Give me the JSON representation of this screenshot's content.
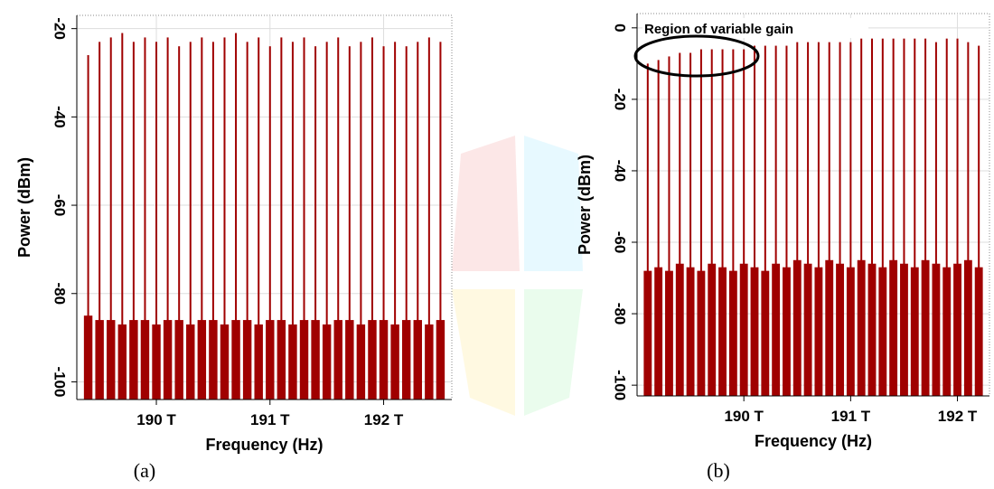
{
  "chart_data": [
    {
      "type": "spectrum",
      "caption": "(a)",
      "x_label": "Frequency (Hz)",
      "y_label": "Power (dBm)",
      "x": [
        189400000000000,
        189500000000000,
        189600000000000,
        189700000000000,
        189800000000000,
        189900000000000,
        190000000000000,
        190100000000000,
        190200000000000,
        190300000000000,
        190400000000000,
        190500000000000,
        190600000000000,
        190700000000000,
        190800000000000,
        190900000000000,
        191000000000000,
        191100000000000,
        191200000000000,
        191300000000000,
        191400000000000,
        191500000000000,
        191600000000000,
        191700000000000,
        191800000000000,
        191900000000000,
        192000000000000,
        192100000000000,
        192200000000000,
        192300000000000,
        192400000000000,
        192500000000000
      ],
      "series": [
        {
          "color": "#a00000",
          "values": [
            -26,
            -23,
            -22,
            -21,
            -23,
            -22,
            -23,
            -22,
            -24,
            -23,
            -22,
            -23,
            -22,
            -21,
            -23,
            -22,
            -24,
            -22,
            -23,
            -22,
            -24,
            -23,
            -22,
            -24,
            -23,
            -22,
            -24,
            -23,
            -24,
            -23,
            -22,
            -23
          ]
        },
        {
          "color": "#a00000",
          "values": [
            -85,
            -86,
            -86,
            -87,
            -86,
            -86,
            -87,
            -86,
            -86,
            -87,
            -86,
            -86,
            -87,
            -86,
            -86,
            -87,
            -86,
            -86,
            -87,
            -86,
            -86,
            -87,
            -86,
            -86,
            -87,
            -86,
            -86,
            -87,
            -86,
            -86,
            -87,
            -86
          ]
        }
      ],
      "xlim": [
        189300000000000,
        192600000000000
      ],
      "xticks": [
        {
          "value": 190000000000000,
          "label": "190 T"
        },
        {
          "value": 191000000000000,
          "label": "191 T"
        },
        {
          "value": 192000000000000,
          "label": "192 T"
        }
      ],
      "ylim": [
        -104,
        -17
      ],
      "yticks": [
        -100,
        -80,
        -60,
        -40,
        -20
      ],
      "grid": true
    },
    {
      "type": "spectrum",
      "caption": "(b)",
      "x_label": "Frequency (Hz)",
      "y_label": "Power (dBm)",
      "annotation": "Region of variable gain",
      "x": [
        189100000000000,
        189200000000000,
        189300000000000,
        189400000000000,
        189500000000000,
        189600000000000,
        189700000000000,
        189800000000000,
        189900000000000,
        190000000000000,
        190100000000000,
        190200000000000,
        190300000000000,
        190400000000000,
        190500000000000,
        190600000000000,
        190700000000000,
        190800000000000,
        190900000000000,
        191000000000000,
        191100000000000,
        191200000000000,
        191300000000000,
        191400000000000,
        191500000000000,
        191600000000000,
        191700000000000,
        191800000000000,
        191900000000000,
        192000000000000,
        192100000000000,
        192200000000000
      ],
      "series": [
        {
          "color": "#a00000",
          "values": [
            -10,
            -9,
            -8,
            -7,
            -7,
            -6,
            -6,
            -6,
            -6,
            -6,
            -5,
            -5,
            -5,
            -5,
            -4,
            -4,
            -4,
            -4,
            -4,
            -4,
            -3,
            -3,
            -3,
            -3,
            -3,
            -3,
            -3,
            -4,
            -3,
            -3,
            -4,
            -5
          ]
        },
        {
          "color": "#a00000",
          "values": [
            -68,
            -67,
            -68,
            -66,
            -67,
            -68,
            -66,
            -67,
            -68,
            -66,
            -67,
            -68,
            -66,
            -67,
            -65,
            -66,
            -67,
            -65,
            -66,
            -67,
            -65,
            -66,
            -67,
            -65,
            -66,
            -67,
            -65,
            -66,
            -67,
            -66,
            -65,
            -67
          ]
        }
      ],
      "xlim": [
        189000000000000,
        192300000000000
      ],
      "xticks": [
        {
          "value": 190000000000000,
          "label": "190 T"
        },
        {
          "value": 191000000000000,
          "label": "191 T"
        },
        {
          "value": 192000000000000,
          "label": "192 T"
        }
      ],
      "ylim": [
        -103,
        4
      ],
      "yticks": [
        -100,
        -80,
        -60,
        -40,
        -20,
        0
      ],
      "grid": true
    }
  ]
}
